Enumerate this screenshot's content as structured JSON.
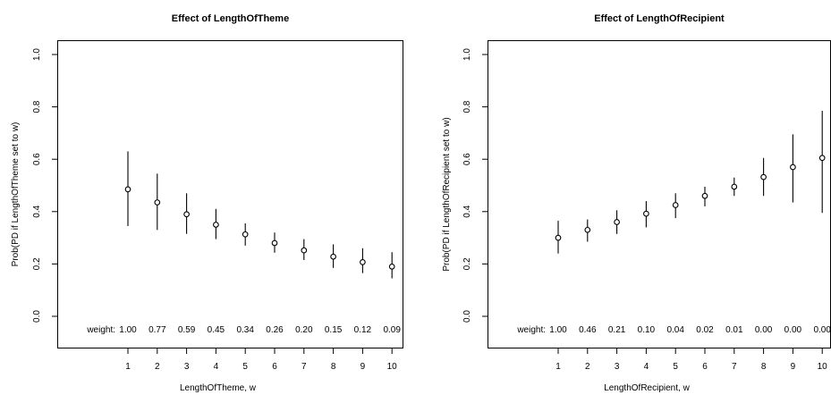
{
  "chart_data": [
    {
      "type": "scatter",
      "title": "Effect of LengthOfTheme",
      "xlabel": "LengthOfTheme, w",
      "ylabel": "Prob(PD if LengthOfTheme set to w)",
      "x": [
        1,
        2,
        3,
        4,
        5,
        6,
        7,
        8,
        9,
        10
      ],
      "y": [
        0.485,
        0.435,
        0.39,
        0.35,
        0.313,
        0.28,
        0.252,
        0.228,
        0.207,
        0.19
      ],
      "y_lower": [
        0.345,
        0.33,
        0.315,
        0.295,
        0.27,
        0.243,
        0.215,
        0.185,
        0.165,
        0.145
      ],
      "y_upper": [
        0.63,
        0.545,
        0.47,
        0.41,
        0.355,
        0.32,
        0.295,
        0.275,
        0.26,
        0.245
      ],
      "x_ticks": [
        "1",
        "2",
        "3",
        "4",
        "5",
        "6",
        "7",
        "8",
        "9",
        "10"
      ],
      "y_ticks": [
        "0.0",
        "0.2",
        "0.4",
        "0.6",
        "0.8",
        "1.0"
      ],
      "ylim": [
        -0.14,
        1.04
      ],
      "weight_label": "weight:",
      "weights": [
        "1.00",
        "0.77",
        "0.59",
        "0.45",
        "0.34",
        "0.26",
        "0.20",
        "0.15",
        "0.12",
        "0.09"
      ]
    },
    {
      "type": "scatter",
      "title": "Effect of LengthOfRecipient",
      "xlabel": "LengthOfRecipient, w",
      "ylabel": "Prob(PD if LengthOfRecipient set to w)",
      "x": [
        1,
        2,
        3,
        4,
        5,
        6,
        7,
        8,
        9,
        10
      ],
      "y": [
        0.3,
        0.33,
        0.36,
        0.392,
        0.425,
        0.46,
        0.495,
        0.532,
        0.57,
        0.605
      ],
      "y_lower": [
        0.24,
        0.285,
        0.315,
        0.34,
        0.375,
        0.42,
        0.46,
        0.46,
        0.435,
        0.395
      ],
      "y_upper": [
        0.365,
        0.37,
        0.405,
        0.44,
        0.47,
        0.495,
        0.53,
        0.605,
        0.695,
        0.785
      ],
      "x_ticks": [
        "1",
        "2",
        "3",
        "4",
        "5",
        "6",
        "7",
        "8",
        "9",
        "10"
      ],
      "y_ticks": [
        "0.0",
        "0.2",
        "0.4",
        "0.6",
        "0.8",
        "1.0"
      ],
      "ylim": [
        -0.14,
        1.04
      ],
      "weight_label": "weight:",
      "weights": [
        "1.00",
        "0.46",
        "0.21",
        "0.10",
        "0.04",
        "0.02",
        "0.01",
        "0.00",
        "0.00",
        "0.00"
      ]
    }
  ]
}
